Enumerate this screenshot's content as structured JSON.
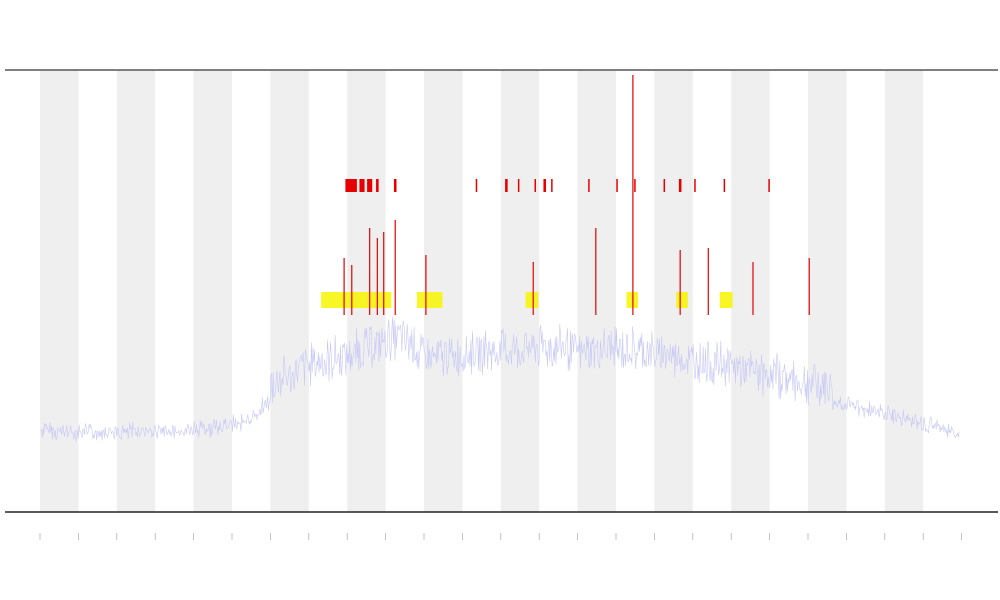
{
  "chart_data": {
    "type": "line",
    "title": "",
    "xlabel": "",
    "ylabel": "",
    "grid": true,
    "x_bands": 24,
    "series": [
      {
        "color": "#c7c9f5",
        "envelope": [
          [
            0,
            428
          ],
          [
            2,
            431
          ],
          [
            4,
            430
          ],
          [
            6,
            432
          ],
          [
            8,
            429
          ],
          [
            10,
            431
          ],
          [
            12,
            428
          ],
          [
            14,
            426
          ],
          [
            16,
            422
          ],
          [
            17,
            412
          ],
          [
            18,
            400
          ],
          [
            19,
            392
          ],
          [
            20,
            385
          ],
          [
            21,
            378
          ],
          [
            22,
            375
          ],
          [
            23,
            372
          ],
          [
            24,
            368
          ],
          [
            25,
            364
          ],
          [
            26,
            358
          ],
          [
            27,
            355
          ],
          [
            28,
            350
          ],
          [
            29,
            357
          ],
          [
            30,
            370
          ],
          [
            31,
            372
          ],
          [
            32,
            368
          ],
          [
            34,
            366
          ],
          [
            36,
            364
          ],
          [
            38,
            362
          ],
          [
            40,
            360
          ],
          [
            41,
            362
          ],
          [
            42,
            365
          ],
          [
            44,
            363
          ],
          [
            46,
            361
          ],
          [
            48,
            366
          ],
          [
            50,
            370
          ],
          [
            52,
            375
          ],
          [
            54,
            380
          ],
          [
            56,
            385
          ],
          [
            58,
            390
          ],
          [
            60,
            395
          ],
          [
            62,
            400
          ],
          [
            64,
            406
          ],
          [
            66,
            412
          ],
          [
            68,
            418
          ],
          [
            70,
            424
          ],
          [
            71,
            430
          ],
          [
            72,
            433
          ]
        ]
      },
      {
        "name": "",
        "color": "#f7f500",
        "level": 300
      },
      {
        "name": "",
        "color": "#e60000",
        "level": 185
      }
    ],
    "red_bars": [
      [
        23.9,
        24.8
      ],
      [
        25.0,
        25.4
      ],
      [
        25.6,
        26.0
      ],
      [
        26.3,
        26.5
      ],
      [
        27.7,
        27.9
      ],
      [
        34.1,
        34.2
      ],
      [
        36.4,
        36.6
      ],
      [
        37.4,
        37.5
      ],
      [
        38.7,
        38.8
      ],
      [
        39.4,
        39.6
      ],
      [
        40.0,
        40.1
      ],
      [
        42.9,
        43.0
      ],
      [
        45.1,
        45.2
      ],
      [
        46.5,
        46.6
      ],
      [
        48.8,
        48.9
      ],
      [
        50.0,
        50.2
      ],
      [
        51.2,
        51.3
      ],
      [
        53.5,
        53.6
      ],
      [
        57.0,
        57.1
      ]
    ],
    "spikes": [
      {
        "x": 23.8,
        "top": 258,
        "color": "#e60000"
      },
      {
        "x": 24.4,
        "top": 265,
        "color": "#e60000"
      },
      {
        "x": 25.8,
        "top": 228,
        "color": "#e60000"
      },
      {
        "x": 26.4,
        "top": 238,
        "color": "#e60000"
      },
      {
        "x": 26.9,
        "top": 232,
        "color": "#e60000"
      },
      {
        "x": 27.8,
        "top": 220,
        "color": "#e60000"
      },
      {
        "x": 30.2,
        "top": 255,
        "color": "#e60000"
      },
      {
        "x": 38.6,
        "top": 262,
        "color": "#e60000"
      },
      {
        "x": 43.5,
        "top": 228,
        "color": "#e60000"
      },
      {
        "x": 46.4,
        "top": 75,
        "color": "#e60000"
      },
      {
        "x": 50.1,
        "top": 250,
        "color": "#e60000"
      },
      {
        "x": 52.3,
        "top": 248,
        "color": "#e60000"
      },
      {
        "x": 55.8,
        "top": 262,
        "color": "#e60000"
      },
      {
        "x": 60.2,
        "top": 258,
        "color": "#e60000"
      }
    ]
  }
}
